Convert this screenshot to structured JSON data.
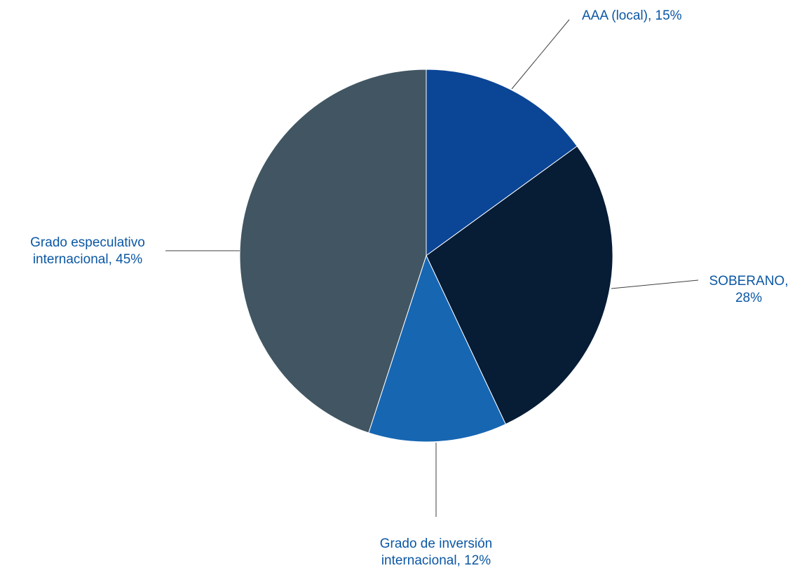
{
  "chart_data": {
    "type": "pie",
    "title": "",
    "start_angle_deg": 0,
    "direction": "clockwise",
    "slice_border_color": "#ffffff",
    "leader_line_color": "#404040",
    "label_color": "#0b57a4",
    "slices": [
      {
        "label": "AAA (local), 15%",
        "label_lines": [
          "AAA (local), 15%"
        ],
        "category": "AAA (local)",
        "value": 15,
        "color": "#0b4596"
      },
      {
        "label": "SOBERANO, 28%",
        "label_lines": [
          "SOBERANO,",
          "28%"
        ],
        "category": "SOBERANO",
        "value": 28,
        "color": "#071c35"
      },
      {
        "label": "Grado de inversión internacional, 12%",
        "label_lines": [
          "Grado de inversión",
          "internacional, 12%"
        ],
        "category": "Grado de inversión internacional",
        "value": 12,
        "color": "#1766b2"
      },
      {
        "label": "Grado especulativo internacional, 45%",
        "label_lines": [
          "Grado especulativo",
          "internacional, 45%"
        ],
        "category": "Grado especulativo internacional",
        "value": 45,
        "color": "#415662"
      }
    ]
  }
}
